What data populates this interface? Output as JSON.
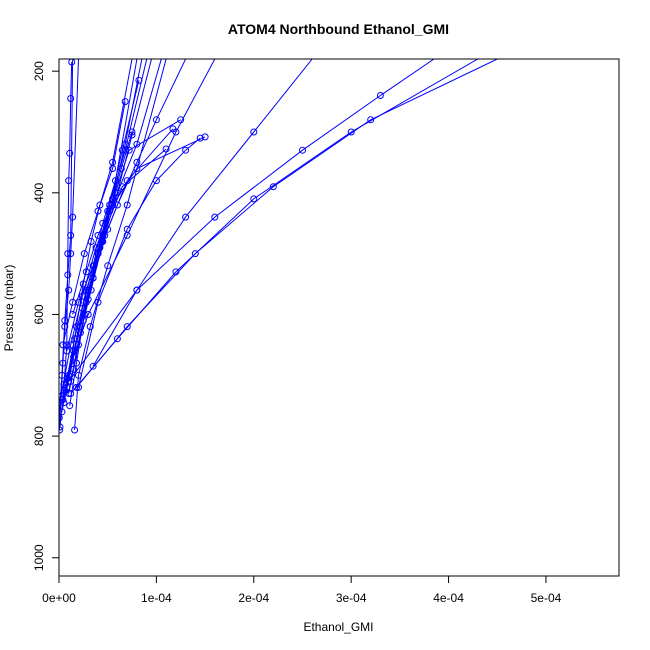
{
  "chart_data": {
    "type": "line",
    "title": "ATOM4 Northbound Ethanol_GMI",
    "xlabel": "Ethanol_GMI",
    "ylabel": "Pressure (mbar)",
    "xlim": [
      0,
      0.000575
    ],
    "ylim": [
      1030,
      180
    ],
    "y_reversed": true,
    "x_ticks": [
      0,
      0.0001,
      0.0002,
      0.0003,
      0.0004,
      0.0005
    ],
    "x_tick_labels": [
      "0e+00",
      "1e-04",
      "2e-04",
      "3e-04",
      "4e-04",
      "5e-04"
    ],
    "y_ticks": [
      200,
      400,
      600,
      800,
      1000
    ],
    "y_tick_labels": [
      "200",
      "400",
      "600",
      "800",
      "1000"
    ],
    "series_color": "#0000ff",
    "marker": "open-circle",
    "profiles": [
      {
        "x": [
          5e-07,
          2e-06,
          4e-06,
          6e-06,
          1e-05,
          1.2e-05,
          1.4e-05,
          2e-05
        ],
        "y": [
          790,
          740,
          680,
          620,
          560,
          500,
          440,
          180
        ]
      },
      {
        "x": [
          1e-06,
          4.5e-06,
          8e-06,
          9e-06,
          1e-05,
          1.1e-05,
          1.2e-05,
          1.3e-05
        ],
        "y": [
          785,
          730,
          650,
          500,
          380,
          335,
          245,
          185
        ]
      },
      {
        "x": [
          3e-07,
          3e-06,
          6e-06,
          9e-06,
          1.2e-05,
          1.4e-05
        ],
        "y": [
          770,
          700,
          610,
          535,
          470,
          180
        ]
      },
      {
        "x": [
          3e-06,
          1e-05,
          1.8e-05,
          2.5e-05,
          3.3e-05,
          4.2e-05,
          5.5e-05,
          7.5e-05
        ],
        "y": [
          760,
          700,
          620,
          550,
          480,
          420,
          350,
          180
        ]
      },
      {
        "x": [
          5e-06,
          1.5e-05,
          2.4e-05,
          3.5e-05,
          4.5e-05,
          5.8e-05,
          8e-05
        ],
        "y": [
          745,
          670,
          590,
          520,
          450,
          380,
          180
        ]
      },
      {
        "x": [
          1e-05,
          2e-05,
          3e-05,
          4.2e-05,
          5.2e-05,
          6.5e-05,
          8.2e-05
        ],
        "y": [
          730,
          650,
          575,
          490,
          420,
          330,
          215
        ]
      },
      {
        "x": [
          1.2e-05,
          2.2e-05,
          3.3e-05,
          4.5e-05,
          5.5e-05,
          6.8e-05,
          8.5e-05
        ],
        "y": [
          710,
          630,
          560,
          480,
          410,
          320,
          180
        ]
      },
      {
        "x": [
          1.5e-05,
          2.5e-05,
          3.5e-05,
          4.7e-05,
          6e-05,
          7.5e-05,
          9.5e-05
        ],
        "y": [
          690,
          610,
          540,
          470,
          400,
          305,
          180
        ]
      },
      {
        "x": [
          1.1e-05,
          1.8e-05,
          2.6e-05,
          3.6e-05,
          5e-05,
          6.8e-05,
          9e-05
        ],
        "y": [
          750,
          680,
          600,
          520,
          430,
          330,
          180
        ]
      },
      {
        "x": [
          1.6e-05,
          2e-05,
          3.2e-05,
          5e-05,
          7e-05,
          0.00011
        ],
        "y": [
          790,
          700,
          620,
          520,
          420,
          180
        ]
      },
      {
        "x": [
          4e-06,
          1.5e-05,
          2.8e-05,
          4e-05,
          5.2e-05,
          6.4e-05,
          7.5e-05
        ],
        "y": [
          740,
          660,
          580,
          500,
          430,
          360,
          300
        ]
      },
      {
        "x": [
          8e-06,
          1.8e-05,
          3e-05,
          4.4e-05,
          5.8e-05,
          7.2e-05,
          0.000125
        ],
        "y": [
          720,
          640,
          560,
          480,
          400,
          330,
          280
        ]
      },
      {
        "x": [
          2e-06,
          1.2e-05,
          2.4e-05,
          3.8e-05,
          5.5e-05,
          8e-05,
          0.00015
        ],
        "y": [
          735,
          650,
          570,
          490,
          420,
          360,
          308
        ]
      },
      {
        "x": [
          6e-06,
          1.6e-05,
          2.8e-05,
          4.5e-05,
          6.5e-05,
          0.00011
        ],
        "y": [
          725,
          640,
          560,
          470,
          390,
          328
        ]
      },
      {
        "x": [
          9e-06,
          2.2e-05,
          3.5e-05,
          5e-05,
          7e-05,
          0.000117
        ],
        "y": [
          705,
          620,
          540,
          460,
          380,
          295
        ]
      },
      {
        "x": [
          2e-05,
          4e-05,
          7e-05,
          0.0001,
          0.00013,
          0.000145
        ],
        "y": [
          720,
          580,
          460,
          380,
          330,
          310
        ]
      },
      {
        "x": [
          1.2e-05,
          6e-05,
          0.00012,
          0.0002,
          0.0003,
          0.00043
        ],
        "y": [
          730,
          640,
          530,
          410,
          300,
          180
        ]
      },
      {
        "x": [
          1.8e-05,
          7e-05,
          0.00014,
          0.00022,
          0.00032,
          0.00045
        ],
        "y": [
          720,
          620,
          500,
          390,
          280,
          180
        ]
      },
      {
        "x": [
          1e-05,
          8e-05,
          0.00016,
          0.00025,
          0.00033,
          0.000385
        ],
        "y": [
          710,
          560,
          440,
          330,
          240,
          180
        ]
      },
      {
        "x": [
          3.5e-05,
          8e-05,
          0.00013,
          0.0002,
          0.00026
        ],
        "y": [
          685,
          560,
          440,
          300,
          180
        ]
      },
      {
        "x": [
          5e-06,
          3e-05,
          7e-05,
          0.00012,
          0.00016
        ],
        "y": [
          715,
          600,
          470,
          300,
          180
        ]
      },
      {
        "x": [
          8e-06,
          2e-05,
          4e-05,
          6e-05,
          8e-05,
          0.0001,
          0.00013
        ],
        "y": [
          660,
          580,
          500,
          420,
          350,
          280,
          180
        ]
      },
      {
        "x": [
          1.4e-05,
          2.8e-05,
          4e-05,
          6e-05,
          8e-05,
          0.000105
        ],
        "y": [
          600,
          530,
          470,
          400,
          320,
          180
        ]
      },
      {
        "x": [
          4e-06,
          1.4e-05,
          2.6e-05,
          4e-05,
          5.5e-05,
          6.8e-05
        ],
        "y": [
          650,
          580,
          500,
          430,
          360,
          250
        ]
      }
    ]
  }
}
